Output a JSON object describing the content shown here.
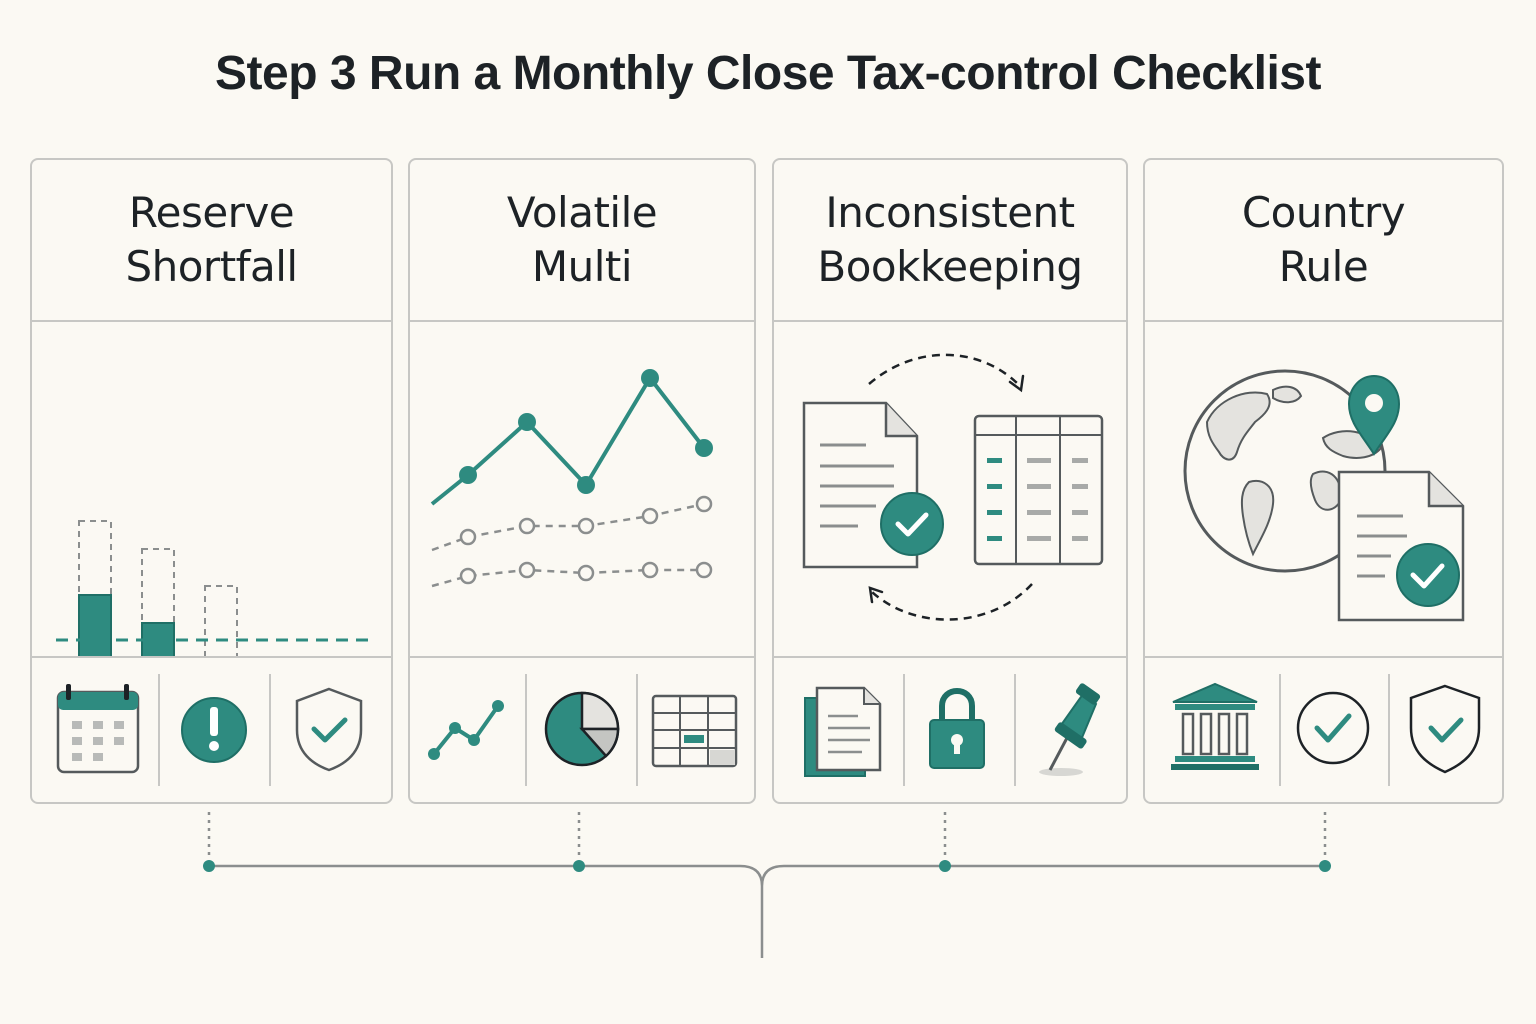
{
  "title": "Step 3 Run a Monthly Close Tax-control Checklist",
  "cards": [
    {
      "title_line1": "Reserve",
      "title_line2": "Shortfall",
      "illustration": "reserve-bar-chart-warning",
      "icons": [
        "calendar-icon",
        "alert-icon",
        "shield-check-icon"
      ]
    },
    {
      "title_line1": "Volatile",
      "title_line2": "Multi",
      "illustration": "volatile-line-chart",
      "icons": [
        "line-chart-icon",
        "pie-chart-icon",
        "spreadsheet-icon"
      ]
    },
    {
      "title_line1": "Inconsistent",
      "title_line2": "Bookkeeping",
      "illustration": "document-ledger-sync",
      "icons": [
        "documents-icon",
        "padlock-icon",
        "pushpin-icon"
      ]
    },
    {
      "title_line1": "Country",
      "title_line2": "Rule",
      "illustration": "globe-location-document",
      "icons": [
        "bank-icon",
        "check-circle-icon",
        "shield-check-icon"
      ]
    }
  ],
  "colors": {
    "accent": "#2e8b80",
    "accent_dark": "#1f6f66",
    "ink": "#1d2226",
    "outline": "#555a5c",
    "border": "#c7c7c4",
    "background": "#fbf9f3"
  }
}
